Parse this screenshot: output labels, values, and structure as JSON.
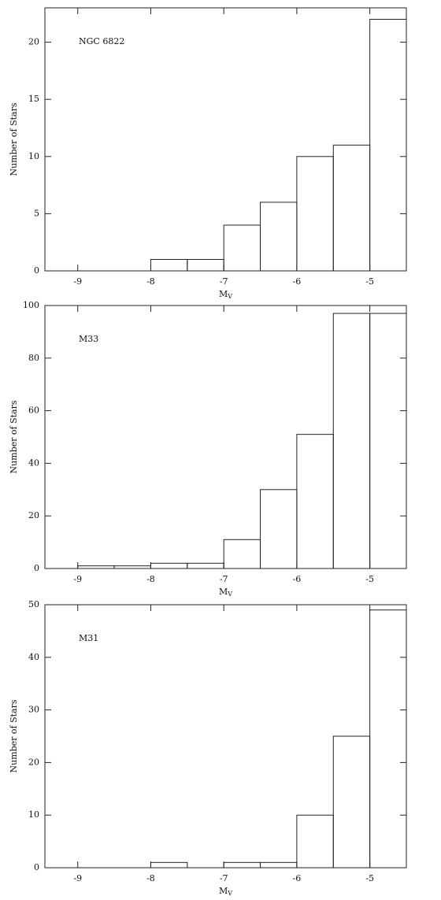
{
  "chart_data": [
    {
      "type": "histogram",
      "label": "NGC 6822",
      "xlabel": "M",
      "xlabel_subscript": "V",
      "ylabel": "Number of Stars",
      "bins": [
        -8,
        -7.5,
        -7,
        -6.5,
        -6,
        -5.5,
        -5,
        -4.5
      ],
      "counts": [
        1,
        1,
        4,
        6,
        10,
        11,
        22
      ],
      "xlim": [
        -9.45,
        -4.5
      ],
      "ylim": [
        0,
        23
      ],
      "xticks": [
        -9,
        -8,
        -7,
        -6,
        -5
      ],
      "yticks": [
        0,
        5,
        10,
        15,
        20
      ],
      "color": "#222"
    },
    {
      "type": "histogram",
      "label": "M33",
      "xlabel": "M",
      "xlabel_subscript": "V",
      "ylabel": "Number of Stars",
      "bins": [
        -9,
        -8.5,
        -8,
        -7.5,
        -7,
        -6.5,
        -6,
        -5.5,
        -5,
        -4.5
      ],
      "counts": [
        1,
        1,
        2,
        2,
        11,
        30,
        51,
        97,
        97
      ],
      "xlim": [
        -9.45,
        -4.5
      ],
      "ylim": [
        0,
        100
      ],
      "xticks": [
        -9,
        -8,
        -7,
        -6,
        -5
      ],
      "yticks": [
        0,
        20,
        40,
        60,
        80,
        100
      ],
      "color": "#222"
    },
    {
      "type": "histogram",
      "label": "M31",
      "xlabel": "M",
      "xlabel_subscript": "V",
      "ylabel": "Number of Stars",
      "bins": [
        -8,
        -7.5,
        -7,
        -6.5,
        -6,
        -5.5,
        -5,
        -4.5
      ],
      "counts": [
        1,
        0,
        1,
        1,
        10,
        25,
        49
      ],
      "xlim": [
        -9.45,
        -4.5
      ],
      "ylim": [
        0,
        50
      ],
      "xticks": [
        -9,
        -8,
        -7,
        -6,
        -5
      ],
      "yticks": [
        0,
        10,
        20,
        30,
        40,
        50
      ],
      "color": "#222"
    }
  ]
}
